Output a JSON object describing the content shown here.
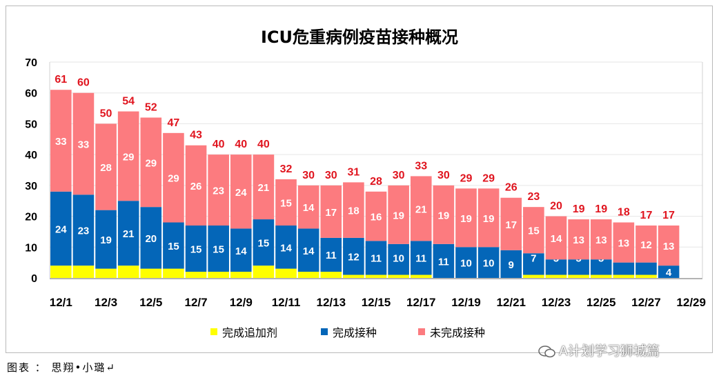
{
  "chart_data": {
    "type": "bar",
    "stacked": true,
    "title": "ICU危重病例疫苗接种概况",
    "categories": [
      "12/1",
      "12/2",
      "12/3",
      "12/4",
      "12/5",
      "12/6",
      "12/7",
      "12/8",
      "12/9",
      "12/10",
      "12/11",
      "12/12",
      "12/13",
      "12/14",
      "12/15",
      "12/16",
      "12/17",
      "12/18",
      "12/19",
      "12/20",
      "12/21",
      "12/22",
      "12/23",
      "12/24",
      "12/25",
      "12/26",
      "12/27",
      "12/28"
    ],
    "x_tick_labels": [
      "12/1",
      "12/3",
      "12/5",
      "12/7",
      "12/9",
      "12/11",
      "12/13",
      "12/15",
      "12/17",
      "12/19",
      "12/21",
      "12/23",
      "12/25",
      "12/27",
      "12/29"
    ],
    "y_ticks": [
      0,
      10,
      20,
      30,
      40,
      50,
      60,
      70
    ],
    "ylim": [
      0,
      70
    ],
    "grid": true,
    "legend_position": "bottom",
    "series": [
      {
        "name": "完成追加剂",
        "color": "#ffff00",
        "label_color": "#c8d600",
        "values": [
          4,
          4,
          3,
          4,
          3,
          3,
          2,
          2,
          2,
          4,
          3,
          2,
          2,
          1,
          1,
          1,
          1,
          0,
          0,
          0,
          0,
          1,
          1,
          1,
          1,
          1,
          1,
          0
        ]
      },
      {
        "name": "完成接种",
        "color": "#0466b8",
        "label_color": "#ffffff",
        "values": [
          24,
          23,
          19,
          21,
          20,
          15,
          15,
          15,
          14,
          15,
          14,
          14,
          11,
          12,
          11,
          10,
          11,
          11,
          10,
          10,
          9,
          7,
          5,
          5,
          5,
          4,
          4,
          4
        ]
      },
      {
        "name": "未完成接种",
        "color": "#fc7b7f",
        "label_color": "#ffffff",
        "values": [
          33,
          33,
          28,
          29,
          29,
          29,
          26,
          23,
          24,
          21,
          15,
          14,
          17,
          18,
          16,
          19,
          21,
          19,
          19,
          19,
          17,
          15,
          14,
          13,
          13,
          13,
          12,
          13
        ]
      }
    ],
    "totals": [
      61,
      60,
      50,
      54,
      52,
      47,
      43,
      40,
      40,
      40,
      32,
      30,
      30,
      31,
      28,
      30,
      33,
      30,
      29,
      29,
      26,
      23,
      20,
      19,
      19,
      18,
      17,
      17
    ],
    "total_label_color": "#e0141e"
  },
  "caption": "图表 ： 思翔•小璐↵",
  "watermark": "A计划学习狮城篇"
}
